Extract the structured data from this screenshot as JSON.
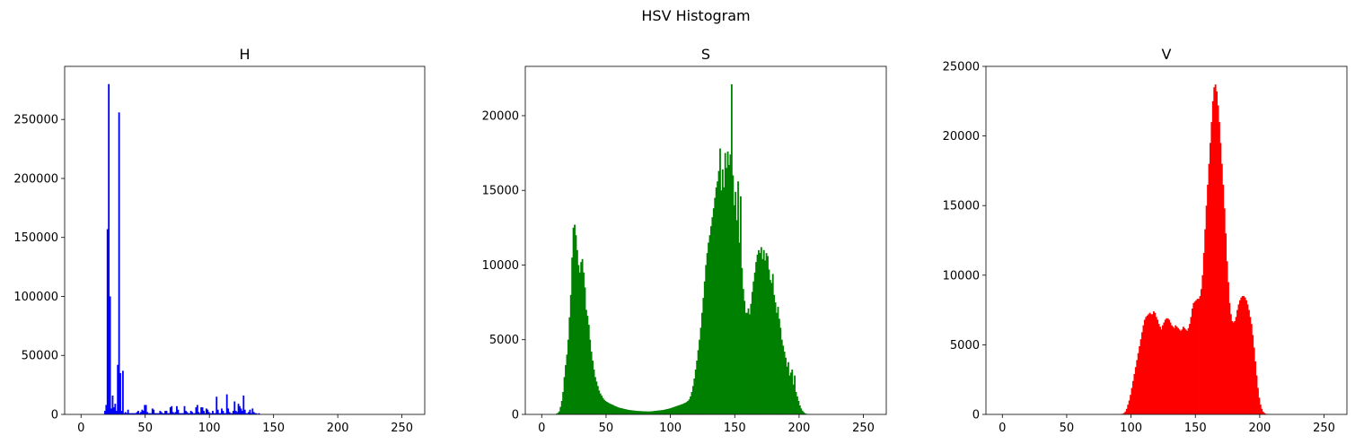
{
  "figure": {
    "suptitle": "HSV Histogram"
  },
  "chart_data": [
    {
      "type": "bar",
      "title": "H",
      "color": "#0000ff",
      "xlim": [
        -12.75,
        267.75
      ],
      "ylim": [
        0,
        295000
      ],
      "xticks": [
        0,
        50,
        100,
        150,
        200,
        250
      ],
      "yticks": [
        0,
        50000,
        100000,
        150000,
        200000,
        250000
      ],
      "bin_start": 0,
      "bin_width": 1,
      "values": [
        0,
        0,
        0,
        0,
        0,
        0,
        0,
        0,
        0,
        0,
        0,
        0,
        0,
        0,
        0,
        0,
        0,
        0,
        3000,
        8000,
        157000,
        280000,
        100000,
        5000,
        16000,
        6000,
        9000,
        3000,
        42000,
        256000,
        35000,
        3000,
        37000,
        1000,
        2000,
        1000,
        4000,
        1000,
        1000,
        1000,
        1000,
        1000,
        1000,
        2000,
        3000,
        1000,
        2000,
        4000,
        3000,
        8000,
        8000,
        2000,
        1000,
        1000,
        1000,
        5000,
        4000,
        1000,
        1000,
        1000,
        1000,
        3000,
        2000,
        1000,
        1000,
        3000,
        3000,
        1000,
        1000,
        6000,
        7000,
        2000,
        1000,
        2000,
        7000,
        4000,
        1000,
        1000,
        1000,
        1000,
        7000,
        3000,
        2000,
        1000,
        1000,
        3000,
        2000,
        1000,
        1000,
        6000,
        8000,
        2000,
        1000,
        6000,
        6000,
        3000,
        1000,
        5000,
        4000,
        2000,
        1000,
        1000,
        3000,
        1000,
        1000,
        15000,
        4000,
        1000,
        1000,
        5000,
        3000,
        1000,
        1000,
        17000,
        5000,
        2000,
        1000,
        1000,
        3000,
        11000,
        3000,
        2000,
        9000,
        7000,
        5000,
        3000,
        16000,
        4000,
        1000,
        1000,
        2000,
        4000,
        1000,
        5000,
        2000,
        1000,
        1000,
        0,
        1000,
        0,
        0,
        0,
        0,
        0,
        0,
        0,
        0,
        0,
        0,
        0,
        0,
        0,
        0,
        0,
        0,
        0,
        0,
        0,
        0,
        0,
        0,
        0,
        0,
        0,
        0,
        0,
        0,
        0,
        0,
        0,
        0,
        0,
        0,
        0,
        0,
        0,
        0,
        0,
        0,
        0,
        0,
        0,
        0,
        0,
        0,
        0,
        0,
        0,
        0,
        0,
        0,
        0,
        0,
        0,
        0,
        0,
        0,
        0,
        0,
        0,
        0,
        0,
        0,
        0,
        0,
        0,
        0,
        0,
        0,
        0,
        0,
        0,
        0,
        0,
        0,
        0,
        0,
        0,
        0,
        0,
        0,
        0,
        0,
        0,
        0,
        0,
        0,
        0,
        0,
        0,
        0,
        0,
        0,
        0,
        0,
        0,
        0,
        0,
        0,
        0,
        0,
        0,
        0,
        0,
        0,
        0,
        0,
        0,
        0,
        0,
        0,
        0,
        0,
        0,
        0,
        0,
        0,
        0,
        0,
        0,
        0,
        0,
        0,
        0,
        0,
        0,
        0,
        0,
        0,
        0,
        0,
        0,
        0,
        0,
        0,
        0,
        0,
        0,
        0,
        0,
        0,
        0,
        0,
        0,
        0,
        0,
        0,
        0,
        0,
        0,
        0,
        0,
        0,
        0,
        0,
        0,
        0,
        0,
        0,
        0,
        0,
        0,
        0,
        0,
        0,
        0,
        0,
        0,
        0,
        0,
        0,
        0,
        0,
        0,
        0,
        0,
        0,
        0,
        0
      ]
    },
    {
      "type": "bar",
      "title": "S",
      "color": "#008000",
      "xlim": [
        -12.75,
        267.75
      ],
      "ylim": [
        0,
        23300
      ],
      "xticks": [
        0,
        50,
        100,
        150,
        200,
        250
      ],
      "yticks": [
        0,
        5000,
        10000,
        15000,
        20000
      ],
      "bin_start": 0,
      "bin_width": 1,
      "values": [
        0,
        0,
        0,
        0,
        0,
        0,
        0,
        0,
        0,
        0,
        0,
        50,
        100,
        200,
        500,
        900,
        1500,
        2500,
        3300,
        4000,
        5000,
        6500,
        8000,
        10500,
        12500,
        12700,
        12000,
        11000,
        10000,
        9500,
        10200,
        10400,
        9500,
        8500,
        7000,
        6600,
        6000,
        5000,
        4200,
        3600,
        3000,
        2500,
        2200,
        1900,
        1600,
        1400,
        1250,
        1100,
        980,
        900,
        840,
        790,
        740,
        700,
        660,
        620,
        580,
        540,
        500,
        470,
        440,
        420,
        400,
        380,
        360,
        340,
        320,
        300,
        290,
        280,
        270,
        260,
        250,
        240,
        230,
        230,
        220,
        220,
        210,
        210,
        210,
        200,
        200,
        200,
        200,
        210,
        220,
        230,
        240,
        250,
        260,
        270,
        280,
        290,
        300,
        320,
        340,
        360,
        380,
        400,
        430,
        460,
        490,
        520,
        550,
        580,
        610,
        640,
        670,
        700,
        740,
        780,
        830,
        900,
        1000,
        1200,
        1500,
        1900,
        2400,
        3000,
        3600,
        4300,
        5000,
        5800,
        6800,
        7800,
        8900,
        10000,
        10800,
        11500,
        12000,
        12600,
        13200,
        13800,
        14500,
        15200,
        15600,
        16300,
        17800,
        15000,
        16400,
        15200,
        17500,
        16500,
        17600,
        16700,
        17400,
        22100,
        16000,
        14000,
        14900,
        13000,
        15600,
        11500,
        14600,
        9800,
        8400,
        7600,
        6800,
        6800,
        7100,
        6700,
        7400,
        8200,
        8900,
        9500,
        10200,
        10700,
        11000,
        10800,
        11200,
        10400,
        11000,
        10300,
        10800,
        10600,
        9700,
        9000,
        8800,
        9400,
        8000,
        7500,
        6800,
        7200,
        6400,
        5800,
        5000,
        4600,
        4200,
        3800,
        3200,
        3500,
        2600,
        2800,
        3000,
        2000,
        2600,
        1500,
        1200,
        900,
        600,
        400,
        250,
        150,
        80,
        40,
        20,
        10,
        0,
        0,
        0,
        0,
        0,
        0,
        0,
        0,
        0,
        0,
        0,
        0,
        0,
        0,
        0,
        0,
        0,
        0,
        0,
        0,
        0,
        0,
        0,
        0,
        0,
        0,
        0,
        0,
        0,
        0,
        0,
        0,
        0,
        0,
        0,
        0,
        0,
        0,
        0,
        0,
        0,
        0
      ]
    },
    {
      "type": "bar",
      "title": "V",
      "color": "#ff0000",
      "xlim": [
        -12.75,
        267.75
      ],
      "ylim": [
        0,
        25000
      ],
      "xticks": [
        0,
        50,
        100,
        150,
        200,
        250
      ],
      "yticks": [
        0,
        5000,
        10000,
        15000,
        20000,
        25000
      ],
      "bin_start": 0,
      "bin_width": 1,
      "values": [
        0,
        0,
        0,
        0,
        0,
        0,
        0,
        0,
        0,
        0,
        0,
        0,
        0,
        0,
        0,
        0,
        0,
        0,
        0,
        0,
        0,
        0,
        0,
        0,
        0,
        0,
        0,
        0,
        0,
        0,
        0,
        0,
        0,
        0,
        0,
        0,
        0,
        0,
        0,
        0,
        0,
        0,
        0,
        0,
        0,
        0,
        0,
        0,
        0,
        0,
        0,
        0,
        0,
        0,
        0,
        0,
        0,
        0,
        0,
        0,
        0,
        0,
        0,
        0,
        0,
        0,
        0,
        0,
        0,
        0,
        0,
        0,
        0,
        0,
        0,
        0,
        0,
        0,
        0,
        0,
        0,
        0,
        0,
        0,
        0,
        0,
        0,
        0,
        0,
        0,
        5,
        10,
        20,
        50,
        100,
        200,
        400,
        700,
        1000,
        1400,
        1900,
        2400,
        2900,
        3400,
        3900,
        4400,
        4900,
        5400,
        5900,
        6400,
        6800,
        7000,
        7100,
        7200,
        7300,
        7200,
        7200,
        7400,
        7300,
        7000,
        6800,
        6500,
        6300,
        6100,
        6400,
        6600,
        6800,
        6900,
        6900,
        6800,
        6600,
        6400,
        6300,
        6200,
        6400,
        6300,
        6200,
        6100,
        6000,
        6100,
        6300,
        6200,
        6100,
        6000,
        6200,
        6500,
        7000,
        7600,
        8000,
        8100,
        8200,
        8300,
        8300,
        8500,
        9000,
        10000,
        11600,
        13300,
        15000,
        16500,
        18000,
        19500,
        21000,
        22500,
        23500,
        23700,
        23200,
        22200,
        21000,
        19500,
        18000,
        16500,
        14800,
        13000,
        11000,
        9500,
        8000,
        7200,
        6700,
        6600,
        6700,
        7000,
        7500,
        7900,
        8200,
        8400,
        8500,
        8500,
        8400,
        8200,
        7900,
        7500,
        7000,
        6500,
        5700,
        4800,
        3800,
        2800,
        1900,
        1200,
        700,
        400,
        200,
        100,
        50,
        20,
        10,
        0,
        0,
        0,
        0,
        0,
        0,
        0,
        0,
        0,
        0,
        0,
        0,
        0,
        0,
        0,
        0,
        0,
        0,
        0,
        0,
        0,
        0,
        0,
        0,
        0,
        0,
        0,
        0,
        0,
        0,
        0,
        0,
        0,
        0,
        0,
        0,
        0
      ]
    }
  ]
}
